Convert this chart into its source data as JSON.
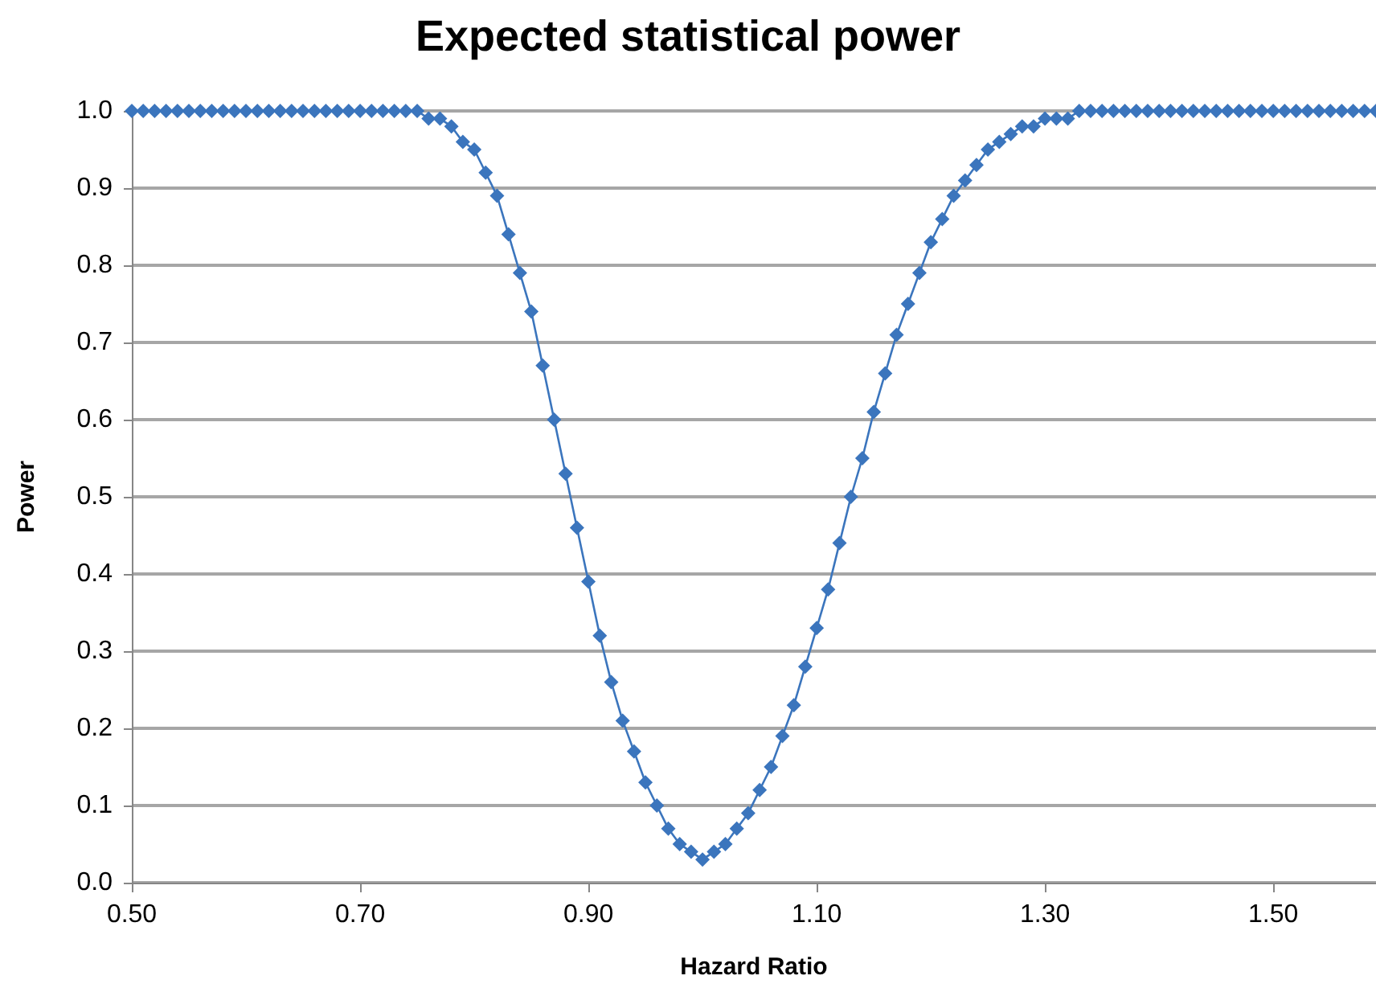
{
  "chart_data": {
    "type": "line",
    "title": "Expected statistical power",
    "xlabel": "Hazard Ratio",
    "ylabel": "Power",
    "x": [
      0.5,
      0.51,
      0.52,
      0.53,
      0.54,
      0.55,
      0.56,
      0.57,
      0.58,
      0.59,
      0.6,
      0.61,
      0.62,
      0.63,
      0.64,
      0.65,
      0.66,
      0.67,
      0.68,
      0.69,
      0.7,
      0.71,
      0.72,
      0.73,
      0.74,
      0.75,
      0.76,
      0.77,
      0.78,
      0.79,
      0.8,
      0.81,
      0.82,
      0.83,
      0.84,
      0.85,
      0.86,
      0.87,
      0.88,
      0.89,
      0.9,
      0.91,
      0.92,
      0.93,
      0.94,
      0.95,
      0.96,
      0.97,
      0.98,
      0.99,
      1.0,
      1.01,
      1.02,
      1.03,
      1.04,
      1.05,
      1.06,
      1.07,
      1.08,
      1.09,
      1.1,
      1.11,
      1.12,
      1.13,
      1.14,
      1.15,
      1.16,
      1.17,
      1.18,
      1.19,
      1.2,
      1.21,
      1.22,
      1.23,
      1.24,
      1.25,
      1.26,
      1.27,
      1.28,
      1.29,
      1.3,
      1.31,
      1.32,
      1.33,
      1.34,
      1.35,
      1.36,
      1.37,
      1.38,
      1.39,
      1.4,
      1.41,
      1.42,
      1.43,
      1.44,
      1.45,
      1.46,
      1.47,
      1.48,
      1.49,
      1.5,
      1.51,
      1.52,
      1.53,
      1.54,
      1.55,
      1.56,
      1.57,
      1.58,
      1.59
    ],
    "series": [
      {
        "color": "#3b75bd",
        "values": [
          1,
          1,
          1,
          1,
          1,
          1,
          1,
          1,
          1,
          1,
          1,
          1,
          1,
          1,
          1,
          1,
          1,
          1,
          1,
          1,
          1,
          1,
          1,
          1,
          1,
          1,
          0.99,
          0.99,
          0.98,
          0.96,
          0.95,
          0.92,
          0.89,
          0.84,
          0.79,
          0.74,
          0.67,
          0.6,
          0.53,
          0.46,
          0.39,
          0.32,
          0.26,
          0.21,
          0.17,
          0.13,
          0.1,
          0.07,
          0.05,
          0.04,
          0.03,
          0.04,
          0.05,
          0.07,
          0.09,
          0.12,
          0.15,
          0.19,
          0.23,
          0.28,
          0.33,
          0.38,
          0.44,
          0.5,
          0.55,
          0.61,
          0.66,
          0.71,
          0.75,
          0.79,
          0.83,
          0.86,
          0.89,
          0.91,
          0.93,
          0.95,
          0.96,
          0.97,
          0.98,
          0.98,
          0.99,
          0.99,
          0.99,
          1,
          1,
          1,
          1,
          1,
          1,
          1,
          1,
          1,
          1,
          1,
          1,
          1,
          1,
          1,
          1,
          1,
          1,
          1,
          1,
          1,
          1,
          1,
          1,
          1,
          1,
          1
        ]
      }
    ],
    "xlim": [
      0.5,
      1.59
    ],
    "xticks": [
      {
        "value": 0.5,
        "label": "0.50"
      },
      {
        "value": 0.7,
        "label": "0.70"
      },
      {
        "value": 0.9,
        "label": "0.90"
      },
      {
        "value": 1.1,
        "label": "1.10"
      },
      {
        "value": 1.3,
        "label": "1.30"
      },
      {
        "value": 1.5,
        "label": "1.50"
      }
    ],
    "ylim": [
      0,
      1
    ],
    "yticks": [
      {
        "value": 0,
        "label": "0.0"
      },
      {
        "value": 0.1,
        "label": "0.1"
      },
      {
        "value": 0.2,
        "label": "0.2"
      },
      {
        "value": 0.3,
        "label": "0.3"
      },
      {
        "value": 0.4,
        "label": "0.4"
      },
      {
        "value": 0.5,
        "label": "0.5"
      },
      {
        "value": 0.6,
        "label": "0.6"
      },
      {
        "value": 0.7,
        "label": "0.7"
      },
      {
        "value": 0.8,
        "label": "0.8"
      },
      {
        "value": 0.9,
        "label": "0.9"
      },
      {
        "value": 1,
        "label": "1.0"
      }
    ],
    "grid": "y",
    "marker": "diamond",
    "line_style": "solid"
  }
}
